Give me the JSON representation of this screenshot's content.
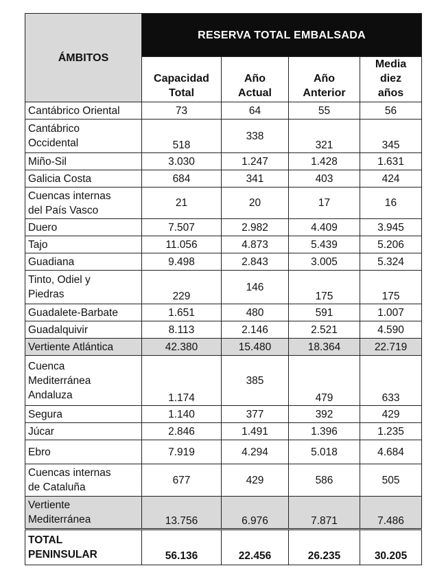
{
  "table": {
    "header_ambitos": "ÁMBITOS",
    "header_group": "RESERVA TOTAL EMBALSADA",
    "columns": [
      [
        "Capacidad",
        "Total"
      ],
      [
        "Año",
        "Actual"
      ],
      [
        "Año",
        "Anterior"
      ],
      [
        "Media",
        "diez",
        "años"
      ]
    ],
    "rows": [
      {
        "name": [
          "Cantábrico Oriental"
        ],
        "values": [
          "73",
          "64",
          "55",
          "56"
        ],
        "style": "mid"
      },
      {
        "name": [
          "Cantábrico",
          "Occidental"
        ],
        "values": [
          "518",
          "338",
          "321",
          "345"
        ],
        "style": "bottom"
      },
      {
        "name": [
          "Miño-Sil"
        ],
        "values": [
          "3.030",
          "1.247",
          "1.428",
          "1.631"
        ],
        "style": "mid"
      },
      {
        "name": [
          "Galicia Costa"
        ],
        "values": [
          "684",
          "341",
          "403",
          "424"
        ],
        "style": "mid"
      },
      {
        "name": [
          "Cuencas internas",
          "del País Vasco"
        ],
        "values": [
          "21",
          "20",
          "17",
          "16"
        ],
        "style": "mid"
      },
      {
        "name": [
          "Duero"
        ],
        "values": [
          "7.507",
          "2.982",
          "4.409",
          "3.945"
        ],
        "style": "mid"
      },
      {
        "name": [
          "Tajo"
        ],
        "values": [
          "11.056",
          "4.873",
          "5.439",
          "5.206"
        ],
        "style": "mid"
      },
      {
        "name": [
          "Guadiana"
        ],
        "values": [
          "9.498",
          "2.843",
          "3.005",
          "5.324"
        ],
        "style": "mid"
      },
      {
        "name": [
          "Tinto, Odiel y",
          "Piedras"
        ],
        "values": [
          "229",
          "146",
          "175",
          "175"
        ],
        "style": "bottom"
      },
      {
        "name": [
          "Guadalete-Barbate"
        ],
        "values": [
          "1.651",
          "480",
          "591",
          "1.007"
        ],
        "style": "mid"
      },
      {
        "name": [
          "Guadalquivir"
        ],
        "values": [
          "8.113",
          "2.146",
          "2.521",
          "4.590"
        ],
        "style": "mid"
      },
      {
        "name": [
          "Vertiente Atlántica"
        ],
        "values": [
          "42.380",
          "15.480",
          "18.364",
          "22.719"
        ],
        "style": "shade"
      },
      {
        "name": [
          "Cuenca",
          "Mediterránea",
          "Andaluza"
        ],
        "values": [
          "1.174",
          "385",
          "479",
          "633"
        ],
        "style": "bottom"
      },
      {
        "name": [
          "Segura"
        ],
        "values": [
          "1.140",
          "377",
          "392",
          "429"
        ],
        "style": "mid"
      },
      {
        "name": [
          "Júcar"
        ],
        "values": [
          "2.846",
          "1.491",
          "1.396",
          "1.235"
        ],
        "style": "mid"
      },
      {
        "name": [
          "Ebro"
        ],
        "values": [
          "7.919",
          "4.294",
          "5.018",
          "4.684"
        ],
        "style": "mid"
      },
      {
        "name": [
          "Cuencas internas",
          "de Cataluña"
        ],
        "values": [
          "677",
          "429",
          "586",
          "505"
        ],
        "style": "mid"
      },
      {
        "name": [
          "Vertiente",
          "Mediterránea"
        ],
        "values": [
          "13.756",
          "6.976",
          "7.871",
          "7.486"
        ],
        "style": "shade-bottom"
      },
      {
        "name": [
          "TOTAL",
          "PENINSULAR"
        ],
        "values": [
          "56.136",
          "22.456",
          "26.235",
          "30.205"
        ],
        "style": "total"
      }
    ]
  }
}
